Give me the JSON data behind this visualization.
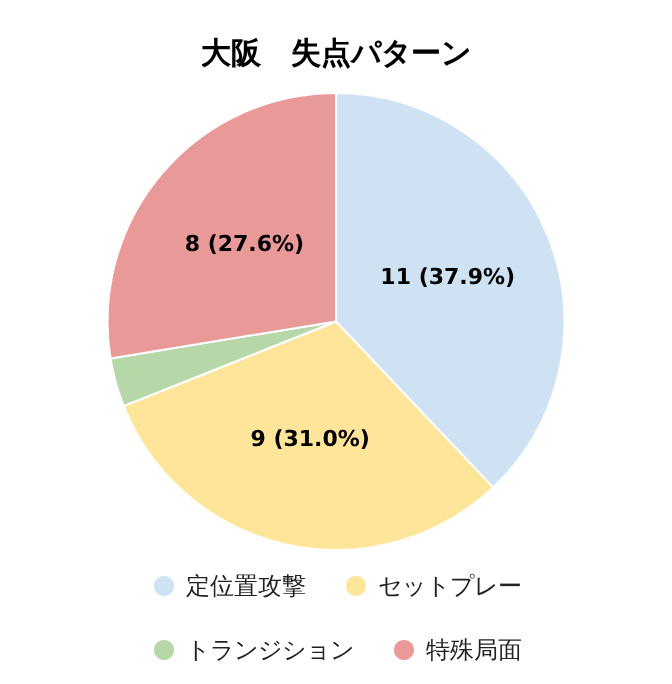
{
  "chart_data": {
    "type": "pie",
    "title": "大阪　失点パターン",
    "categories": [
      "定位置攻撃",
      "セットプレー",
      "トランジション",
      "特殊局面"
    ],
    "values": [
      11,
      9,
      1,
      8
    ],
    "colors": [
      "#cfe2f3",
      "#ffe599",
      "#b6d7a8",
      "#ea9999"
    ],
    "value_labels": [
      "11 (37.9%)",
      "9 (31.0%)",
      null,
      "8 (27.6%)"
    ],
    "legend": "bottom"
  }
}
